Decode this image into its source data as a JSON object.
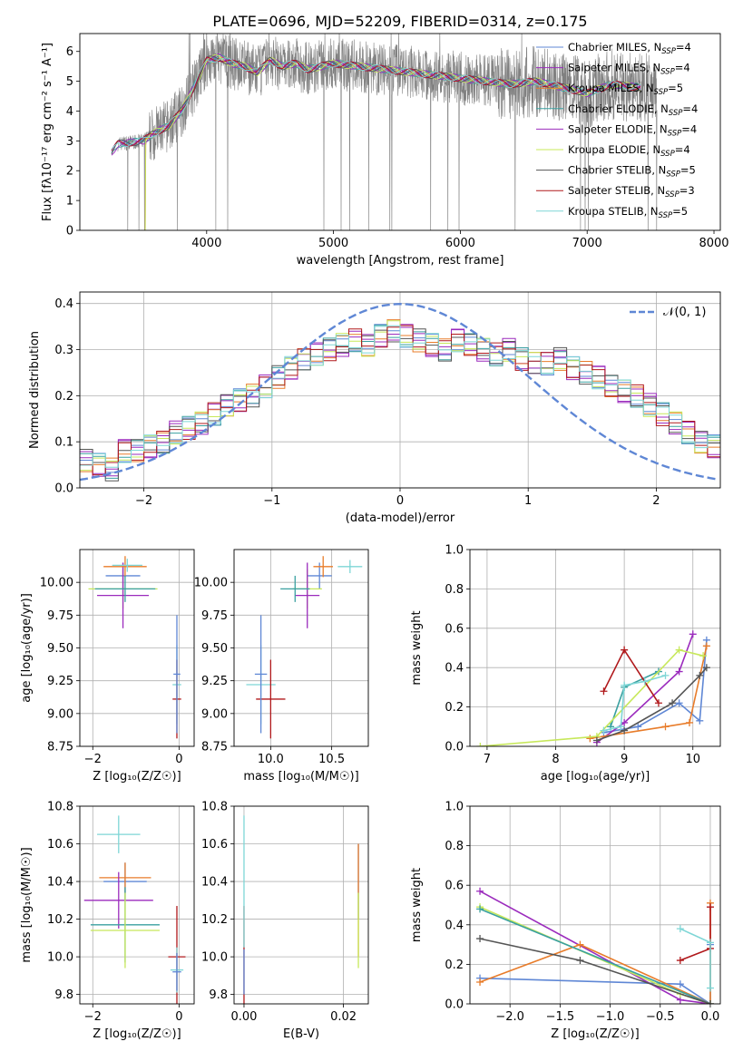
{
  "title": "PLATE=0696, MJD=52209, FIBERID=0314, z=0.175",
  "colors": {
    "series": [
      "#5f87d5",
      "#9b2bbd",
      "#e87c2a",
      "#3aa0a0",
      "#9b2bbd",
      "#c7e85a",
      "#555555",
      "#b0181b",
      "#7ed6d6"
    ],
    "normal": "#5f87d5",
    "data_gray": "#808080",
    "grid": "#b0b0b0"
  },
  "chart_data": [
    {
      "id": "spectrum",
      "type": "line",
      "xlabel": "wavelength [Angstrom, rest frame]",
      "ylabel": "Flux [fλ10⁻¹⁷ erg cm⁻² s⁻¹ A⁻¹]",
      "xlim": [
        3000,
        8050
      ],
      "ylim": [
        0,
        6.6
      ],
      "xticks": [
        4000,
        5000,
        6000,
        7000,
        8000
      ],
      "yticks": [
        0,
        1,
        2,
        3,
        4,
        5,
        6
      ],
      "grid": false,
      "legend_position": "upper right",
      "legend": [
        {
          "label": "Chabrier MILES, N",
          "sub": "SSP",
          "suffix": "=4"
        },
        {
          "label": "Salpeter MILES, N",
          "sub": "SSP",
          "suffix": "=4"
        },
        {
          "label": "Kroupa MILES, N",
          "sub": "SSP",
          "suffix": "=5"
        },
        {
          "label": "Chabrier ELODIE, N",
          "sub": "SSP",
          "suffix": "=4"
        },
        {
          "label": "Salpeter ELODIE, N",
          "sub": "SSP",
          "suffix": "=4"
        },
        {
          "label": "Kroupa ELODIE, N",
          "sub": "SSP",
          "suffix": "=4"
        },
        {
          "label": "Chabrier STELIB, N",
          "sub": "SSP",
          "suffix": "=5"
        },
        {
          "label": "Salpeter STELIB, N",
          "sub": "SSP",
          "suffix": "=3"
        },
        {
          "label": "Kroupa STELIB, N",
          "sub": "SSP",
          "suffix": "=5"
        }
      ],
      "model_curve": {
        "x": [
          3250,
          3300,
          3400,
          3500,
          3600,
          3700,
          3800,
          3900,
          4000,
          4100,
          4200,
          4300,
          4400,
          4500,
          4600,
          4700,
          4800,
          4900,
          5000,
          5200,
          5400,
          5600,
          5800,
          6000,
          6200,
          6400,
          6600,
          6800,
          7000,
          7200,
          7400
        ],
        "y": [
          2.6,
          2.9,
          2.95,
          3.0,
          3.3,
          3.5,
          4.0,
          4.8,
          5.7,
          5.8,
          5.6,
          5.5,
          5.3,
          5.7,
          5.5,
          5.6,
          5.4,
          5.5,
          5.6,
          5.5,
          5.4,
          5.3,
          5.2,
          5.1,
          5.0,
          4.9,
          5.0,
          4.8,
          4.6,
          4.9,
          4.8
        ]
      },
      "data_range": [
        3300,
        7550
      ]
    },
    {
      "id": "residuals",
      "type": "bar",
      "xlabel": "(data-model)/error",
      "ylabel": "Normed distribution",
      "xlim": [
        -2.5,
        2.5
      ],
      "ylim": [
        0,
        0.425
      ],
      "xticks": [
        -2,
        -1,
        0,
        1,
        2
      ],
      "yticks": [
        0.0,
        0.1,
        0.2,
        0.3,
        0.4
      ],
      "grid": true,
      "bin_width": 0.1,
      "bin_start": -2.5,
      "legend_position": "upper right",
      "legend": [
        {
          "label": "𝒩(0, 1)"
        }
      ],
      "curve": "normal pdf, mean 0, sd 1",
      "histogram": [
        0.06,
        0.05,
        0.04,
        0.08,
        0.08,
        0.09,
        0.1,
        0.12,
        0.13,
        0.14,
        0.16,
        0.18,
        0.19,
        0.2,
        0.22,
        0.24,
        0.26,
        0.28,
        0.29,
        0.3,
        0.31,
        0.32,
        0.31,
        0.33,
        0.34,
        0.33,
        0.32,
        0.31,
        0.3,
        0.32,
        0.31,
        0.3,
        0.29,
        0.3,
        0.28,
        0.27,
        0.27,
        0.28,
        0.26,
        0.25,
        0.24,
        0.22,
        0.21,
        0.2,
        0.18,
        0.16,
        0.14,
        0.12,
        0.1,
        0.09
      ]
    },
    {
      "id": "age_vs_Z",
      "type": "scatter",
      "xlabel": "Z [log₁₀(Z/Z☉)]",
      "ylabel": "age  [log₁₀(age/yr)]",
      "xlim": [
        -2.3,
        0.35
      ],
      "ylim": [
        8.75,
        10.25
      ],
      "xticks": [
        -2,
        0
      ],
      "yticks": [
        8.75,
        9.0,
        9.25,
        9.5,
        9.75,
        10.0
      ],
      "grid": true,
      "points": [
        {
          "x": -1.3,
          "y": 10.05,
          "xerr": 0.4,
          "yerr": 0.1,
          "c": 0
        },
        {
          "x": -1.3,
          "y": 9.95,
          "xerr": 0.8,
          "yerr": 0.15,
          "c": 5
        },
        {
          "x": -1.3,
          "y": 9.9,
          "xerr": 0.6,
          "yerr": 0.25,
          "c": 4
        },
        {
          "x": -1.25,
          "y": 10.12,
          "xerr": 0.5,
          "yerr": 0.08,
          "c": 2
        },
        {
          "x": -1.2,
          "y": 10.13,
          "xerr": 0.35,
          "yerr": 0.05,
          "c": 8
        },
        {
          "x": -1.25,
          "y": 9.95,
          "xerr": 0.7,
          "yerr": 0.1,
          "c": 3
        },
        {
          "x": -0.05,
          "y": 9.22,
          "xerr": 0.1,
          "yerr": 0.3,
          "c": 8
        },
        {
          "x": -0.05,
          "y": 9.11,
          "xerr": 0.1,
          "yerr": 0.3,
          "c": 7
        },
        {
          "x": -0.05,
          "y": 9.3,
          "xerr": 0.08,
          "yerr": 0.45,
          "c": 0
        }
      ]
    },
    {
      "id": "age_vs_mass",
      "type": "scatter",
      "xlabel": "mass [log₁₀(M/M☉)]",
      "ylabel": "",
      "xlim": [
        9.7,
        10.8
      ],
      "ylim": [
        8.75,
        10.25
      ],
      "xticks": [
        10.0,
        10.5
      ],
      "yticks": [
        8.75,
        9.0,
        9.25,
        9.5,
        9.75,
        10.0
      ],
      "grid": true,
      "points": [
        {
          "x": 10.4,
          "y": 10.05,
          "xerr": 0.1,
          "yerr": 0.1,
          "c": 0
        },
        {
          "x": 10.3,
          "y": 9.95,
          "xerr": 0.12,
          "yerr": 0.15,
          "c": 5
        },
        {
          "x": 10.3,
          "y": 9.9,
          "xerr": 0.1,
          "yerr": 0.25,
          "c": 4
        },
        {
          "x": 10.43,
          "y": 10.12,
          "xerr": 0.08,
          "yerr": 0.08,
          "c": 2
        },
        {
          "x": 10.65,
          "y": 10.12,
          "xerr": 0.1,
          "yerr": 0.05,
          "c": 8
        },
        {
          "x": 10.2,
          "y": 9.95,
          "xerr": 0.12,
          "yerr": 0.1,
          "c": 3
        },
        {
          "x": 9.92,
          "y": 9.22,
          "xerr": 0.12,
          "yerr": 0.3,
          "c": 8
        },
        {
          "x": 10.0,
          "y": 9.11,
          "xerr": 0.12,
          "yerr": 0.3,
          "c": 7
        },
        {
          "x": 9.92,
          "y": 9.3,
          "xerr": 0.05,
          "yerr": 0.45,
          "c": 0
        }
      ]
    },
    {
      "id": "weight_vs_age",
      "type": "line",
      "xlabel": "age  [log₁₀(age/yr)]",
      "ylabel": "mass weight",
      "xlim": [
        6.75,
        10.4
      ],
      "ylim": [
        0,
        1
      ],
      "xticks": [
        7,
        8,
        9,
        10
      ],
      "yticks": [
        0.0,
        0.2,
        0.4,
        0.6,
        0.8,
        1.0
      ],
      "grid": true,
      "series": [
        {
          "c": 0,
          "x": [
            8.7,
            9.2,
            9.8,
            10.1,
            10.2
          ],
          "y": [
            0.07,
            0.1,
            0.22,
            0.13,
            0.54
          ]
        },
        {
          "c": 4,
          "x": [
            8.6,
            9.0,
            9.8,
            10.0
          ],
          "y": [
            0.02,
            0.12,
            0.38,
            0.57
          ]
        },
        {
          "c": 2,
          "x": [
            8.5,
            9.6,
            9.95,
            10.2
          ],
          "y": [
            0.04,
            0.1,
            0.12,
            0.51
          ]
        },
        {
          "c": 3,
          "x": [
            8.8,
            9.0,
            9.5
          ],
          "y": [
            0.1,
            0.3,
            0.38
          ]
        },
        {
          "c": 5,
          "x": [
            6.9,
            8.6,
            9.8,
            10.15
          ],
          "y": [
            0.0,
            0.05,
            0.49,
            0.46
          ]
        },
        {
          "c": 7,
          "x": [
            8.7,
            9.0,
            9.5
          ],
          "y": [
            0.28,
            0.49,
            0.22
          ]
        },
        {
          "c": 8,
          "x": [
            8.7,
            8.95,
            9.0,
            9.3,
            9.6
          ],
          "y": [
            0.08,
            0.1,
            0.31,
            0.33,
            0.36
          ]
        },
        {
          "c": 6,
          "x": [
            8.6,
            9.0,
            9.7,
            10.1,
            10.2
          ],
          "y": [
            0.03,
            0.08,
            0.22,
            0.36,
            0.4
          ]
        }
      ]
    },
    {
      "id": "mass_vs_Z",
      "type": "scatter",
      "xlabel": "Z [log₁₀(Z/Z☉)]",
      "ylabel": "mass [log₁₀(M/M☉)]",
      "xlim": [
        -2.3,
        0.35
      ],
      "ylim": [
        9.75,
        10.8
      ],
      "xticks": [
        -2,
        0
      ],
      "yticks": [
        9.8,
        10.0,
        10.2,
        10.4,
        10.6,
        10.8
      ],
      "grid": true,
      "points": [
        {
          "x": -1.25,
          "y": 10.4,
          "xerr": 0.5,
          "yerr": 0.1,
          "c": 0
        },
        {
          "x": -1.25,
          "y": 10.42,
          "xerr": 0.6,
          "yerr": 0.08,
          "c": 2
        },
        {
          "x": -1.4,
          "y": 10.65,
          "xerr": 0.5,
          "yerr": 0.1,
          "c": 8
        },
        {
          "x": -1.4,
          "y": 10.3,
          "xerr": 0.8,
          "yerr": 0.15,
          "c": 4
        },
        {
          "x": -1.25,
          "y": 10.17,
          "xerr": 0.8,
          "yerr": 0.2,
          "c": 3
        },
        {
          "x": -1.25,
          "y": 10.14,
          "xerr": 0.8,
          "yerr": 0.2,
          "c": 5
        },
        {
          "x": -0.05,
          "y": 10.0,
          "xerr": 0.2,
          "yerr": 0.27,
          "c": 7
        },
        {
          "x": -0.05,
          "y": 9.93,
          "xerr": 0.15,
          "yerr": 0.12,
          "c": 8
        },
        {
          "x": -0.05,
          "y": 9.92,
          "xerr": 0.1,
          "yerr": 0.1,
          "c": 0
        }
      ]
    },
    {
      "id": "mass_vs_ebv",
      "type": "scatter",
      "xlabel": "E(B-V)",
      "ylabel": "",
      "xlim": [
        -0.002,
        0.025
      ],
      "ylim": [
        9.75,
        10.8
      ],
      "xticks": [
        0.0,
        0.02
      ],
      "yticks": [
        9.8,
        10.0,
        10.2,
        10.4,
        10.6,
        10.8
      ],
      "grid": true,
      "points": [
        {
          "x": 0.0,
          "y": 10.0,
          "xerr": 0,
          "yerr": 0.27,
          "c": 7
        },
        {
          "x": 0.0,
          "y": 10.4,
          "xerr": 0,
          "yerr": 0.35,
          "c": 8
        },
        {
          "x": 0.0,
          "y": 9.92,
          "xerr": 0,
          "yerr": 0.12,
          "c": 0
        },
        {
          "x": 0.023,
          "y": 10.4,
          "xerr": 0,
          "yerr": 0.2,
          "c": 0
        },
        {
          "x": 0.023,
          "y": 10.3,
          "xerr": 0,
          "yerr": 0.3,
          "c": 2
        },
        {
          "x": 0.023,
          "y": 10.14,
          "xerr": 0,
          "yerr": 0.2,
          "c": 5
        }
      ]
    },
    {
      "id": "weight_vs_Z",
      "type": "line",
      "xlabel": "Z [log₁₀(Z/Z☉)]",
      "ylabel": "mass weight",
      "xlim": [
        -2.4,
        0.1
      ],
      "ylim": [
        0,
        1
      ],
      "xticks": [
        -2.0,
        -1.5,
        -1.0,
        -0.5,
        0.0
      ],
      "yticks": [
        0.0,
        0.2,
        0.4,
        0.6,
        0.8,
        1.0
      ],
      "grid": true,
      "series": [
        {
          "c": 0,
          "x": [
            -2.3,
            -0.3,
            0.0,
            0.0
          ],
          "y": [
            0.13,
            0.1,
            0.0,
            0.3
          ]
        },
        {
          "c": 4,
          "x": [
            -2.3,
            -0.3,
            0.0
          ],
          "y": [
            0.57,
            0.02,
            0.0
          ]
        },
        {
          "c": 2,
          "x": [
            -2.3,
            -1.3,
            0.0,
            0.0
          ],
          "y": [
            0.11,
            0.3,
            0.0,
            0.51
          ]
        },
        {
          "c": 5,
          "x": [
            -2.3,
            -0.3,
            0.0
          ],
          "y": [
            0.49,
            0.05,
            0.0
          ]
        },
        {
          "c": 3,
          "x": [
            -2.3,
            0.0
          ],
          "y": [
            0.48,
            0.0
          ]
        },
        {
          "c": 7,
          "x": [
            -0.3,
            0.0,
            0.0
          ],
          "y": [
            0.22,
            0.28,
            0.49
          ]
        },
        {
          "c": 8,
          "x": [
            -0.3,
            0.0,
            0.0
          ],
          "y": [
            0.38,
            0.31,
            0.08
          ]
        },
        {
          "c": 6,
          "x": [
            -2.3,
            -1.3,
            0.0
          ],
          "y": [
            0.33,
            0.22,
            0.0
          ]
        }
      ]
    }
  ]
}
